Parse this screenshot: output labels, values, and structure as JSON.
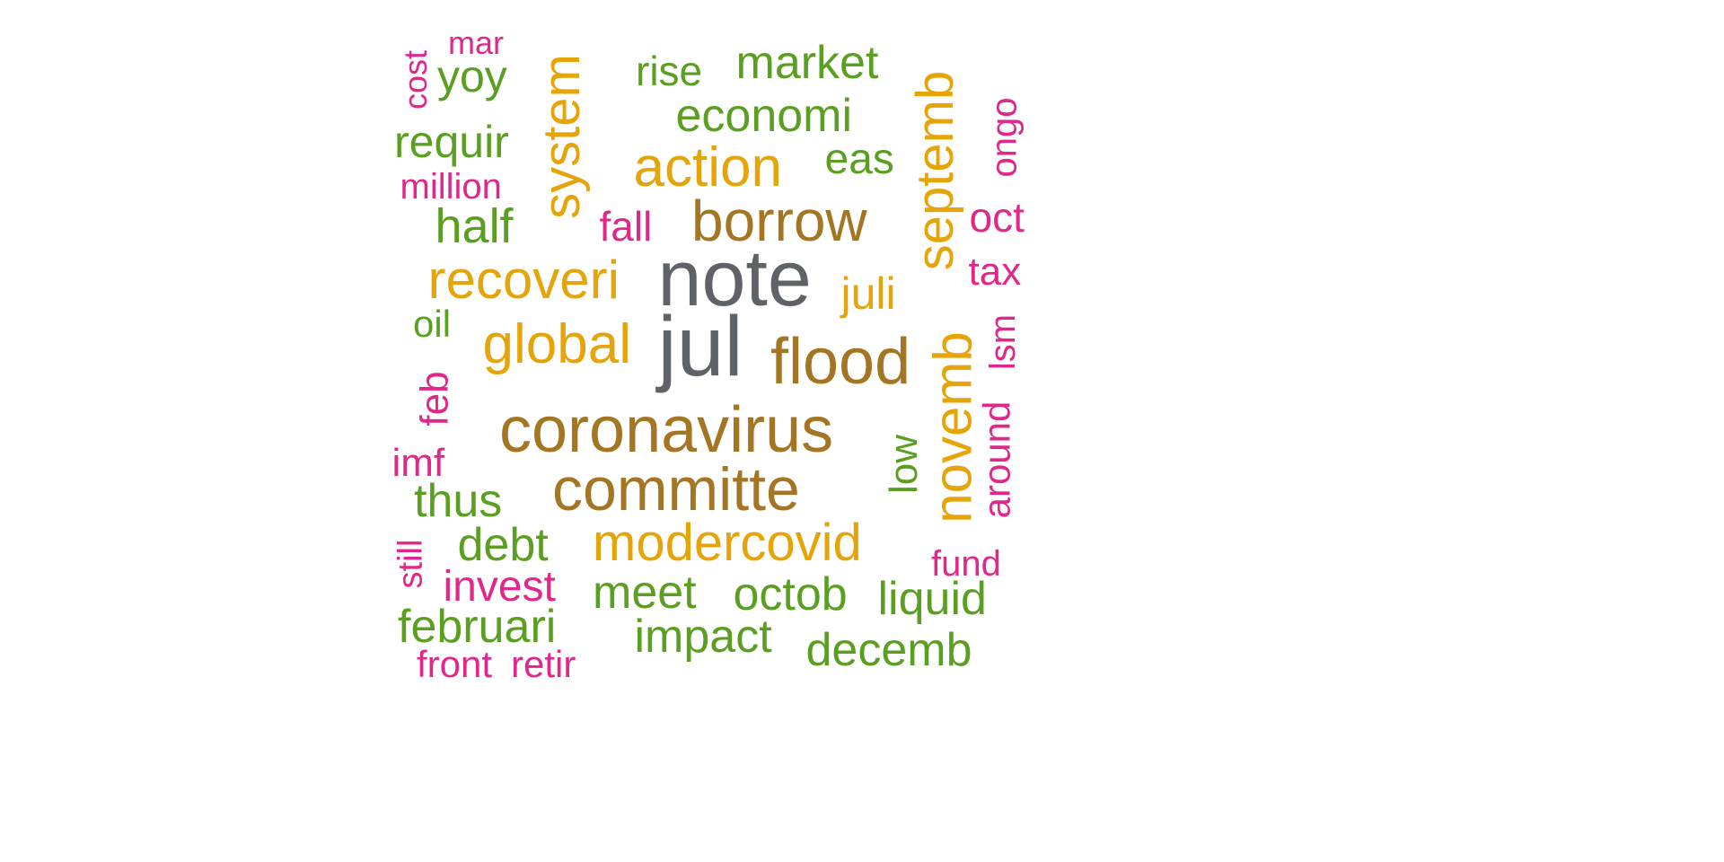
{
  "palette": {
    "gray": "#5f6368",
    "brown": "#a47523",
    "gold": "#e5a50a",
    "green": "#5a9f21",
    "pink": "#e0278a"
  },
  "words": [
    {
      "text": "note",
      "color": "gray",
      "weight": 10
    },
    {
      "text": "jul",
      "color": "gray",
      "weight": 10
    },
    {
      "text": "coronavirus",
      "color": "brown",
      "weight": 8
    },
    {
      "text": "committe",
      "color": "brown",
      "weight": 8
    },
    {
      "text": "borrow",
      "color": "brown",
      "weight": 7
    },
    {
      "text": "flood",
      "color": "brown",
      "weight": 7
    },
    {
      "text": "action",
      "color": "gold",
      "weight": 6
    },
    {
      "text": "system",
      "color": "gold",
      "weight": 6
    },
    {
      "text": "recoveri",
      "color": "gold",
      "weight": 6
    },
    {
      "text": "global",
      "color": "gold",
      "weight": 6
    },
    {
      "text": "septemb",
      "color": "gold",
      "weight": 6
    },
    {
      "text": "novemb",
      "color": "gold",
      "weight": 6
    },
    {
      "text": "modercovid",
      "color": "gold",
      "weight": 6
    },
    {
      "text": "juli",
      "color": "gold",
      "weight": 5
    },
    {
      "text": "market",
      "color": "green",
      "weight": 4
    },
    {
      "text": "economi",
      "color": "green",
      "weight": 4
    },
    {
      "text": "eas",
      "color": "green",
      "weight": 4
    },
    {
      "text": "rise",
      "color": "green",
      "weight": 4
    },
    {
      "text": "yoy",
      "color": "green",
      "weight": 4
    },
    {
      "text": "requir",
      "color": "green",
      "weight": 4
    },
    {
      "text": "half",
      "color": "green",
      "weight": 4
    },
    {
      "text": "thus",
      "color": "green",
      "weight": 4
    },
    {
      "text": "debt",
      "color": "green",
      "weight": 4
    },
    {
      "text": "meet",
      "color": "green",
      "weight": 4
    },
    {
      "text": "octob",
      "color": "green",
      "weight": 4
    },
    {
      "text": "liquid",
      "color": "green",
      "weight": 4
    },
    {
      "text": "impact",
      "color": "green",
      "weight": 4
    },
    {
      "text": "februari",
      "color": "green",
      "weight": 4
    },
    {
      "text": "decemb",
      "color": "green",
      "weight": 4
    },
    {
      "text": "low",
      "color": "green",
      "weight": 3
    },
    {
      "text": "oil",
      "color": "green",
      "weight": 3
    },
    {
      "text": "mar",
      "color": "pink",
      "weight": 2
    },
    {
      "text": "cost",
      "color": "pink",
      "weight": 2
    },
    {
      "text": "million",
      "color": "pink",
      "weight": 2
    },
    {
      "text": "fall",
      "color": "pink",
      "weight": 2
    },
    {
      "text": "ongo",
      "color": "pink",
      "weight": 2
    },
    {
      "text": "oct",
      "color": "pink",
      "weight": 2
    },
    {
      "text": "tax",
      "color": "pink",
      "weight": 2
    },
    {
      "text": "lsm",
      "color": "pink",
      "weight": 2
    },
    {
      "text": "feb",
      "color": "pink",
      "weight": 2
    },
    {
      "text": "imf",
      "color": "pink",
      "weight": 2
    },
    {
      "text": "around",
      "color": "pink",
      "weight": 2
    },
    {
      "text": "still",
      "color": "pink",
      "weight": 2
    },
    {
      "text": "invest",
      "color": "pink",
      "weight": 2
    },
    {
      "text": "fund",
      "color": "pink",
      "weight": 2
    },
    {
      "text": "front",
      "color": "pink",
      "weight": 2
    },
    {
      "text": "retir",
      "color": "pink",
      "weight": 2
    }
  ]
}
